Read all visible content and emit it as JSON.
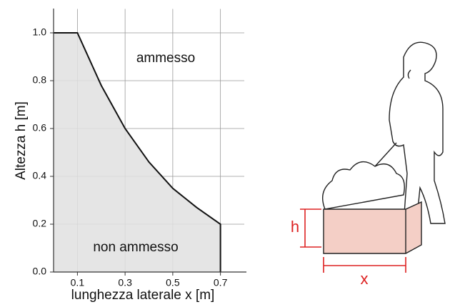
{
  "chart_data": {
    "type": "area",
    "x_label": "lunghezza laterale x [m]",
    "y_label": "Altezza h [m]",
    "x": [
      0,
      0.1,
      0.2,
      0.3,
      0.4,
      0.5,
      0.6,
      0.7
    ],
    "values": [
      1.0,
      1.0,
      0.78,
      0.6,
      0.46,
      0.35,
      0.27,
      0.2
    ],
    "color": "#e0e0e0",
    "line_color": "#111111",
    "xlim": [
      0,
      0.8
    ],
    "ylim": [
      0,
      1.1
    ],
    "xticks": [
      0.1,
      0.3,
      0.5,
      0.7
    ],
    "yticks": [
      {
        "value": 0,
        "label": "0.0"
      },
      0.2,
      0.4,
      0.6,
      0.8,
      {
        "value": 1,
        "label": "1.0"
      }
    ],
    "grid": true,
    "annotations": [
      "ammesso",
      "non ammesso"
    ],
    "illustration_labels": [
      "h",
      "x"
    ]
  }
}
